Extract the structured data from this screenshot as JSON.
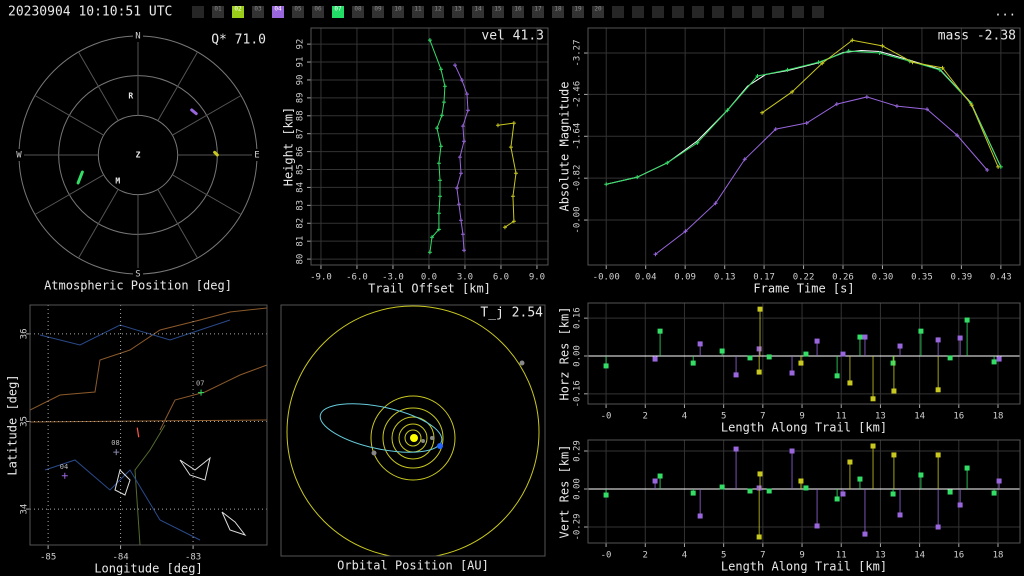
{
  "header": {
    "timestamp": "20230904 10:10:51 UTC",
    "menu": "...",
    "cameras": [
      {
        "label": "01"
      },
      {
        "label": "02",
        "color": "#9acd1a"
      },
      {
        "label": "03"
      },
      {
        "label": "04",
        "color": "#9966dd"
      },
      {
        "label": "05"
      },
      {
        "label": "06"
      },
      {
        "label": "07",
        "color": "#22dd66"
      },
      {
        "label": "08"
      },
      {
        "label": "09"
      },
      {
        "label": "10"
      },
      {
        "label": "11"
      },
      {
        "label": "12"
      },
      {
        "label": "13"
      },
      {
        "label": "14"
      },
      {
        "label": "15"
      },
      {
        "label": "16"
      },
      {
        "label": "17"
      },
      {
        "label": "18"
      },
      {
        "label": "19"
      },
      {
        "label": "20"
      }
    ]
  },
  "chart_data": [
    {
      "type": "polar",
      "title": "Atmospheric Position [deg]",
      "annotation": "Q* 71.0",
      "rlim": [
        0,
        90
      ],
      "rticks": [
        30,
        60,
        90
      ],
      "thetaticks": [
        0,
        30,
        60,
        90,
        120,
        150,
        180,
        210,
        240,
        270,
        300,
        330
      ],
      "directions": [
        {
          "label": "N",
          "az": 0
        },
        {
          "label": "E",
          "az": 90
        },
        {
          "label": "S",
          "az": 180
        },
        {
          "label": "W",
          "az": 270
        }
      ],
      "markers": [
        {
          "label": "Z",
          "az": 0,
          "zen": 0
        },
        {
          "label": "R",
          "az": 353,
          "zen": 45
        },
        {
          "label": "M",
          "az": 217.6,
          "zen": 25
        }
      ],
      "series": [
        {
          "color": "#33dd66",
          "az": [
            245,
            253
          ],
          "zen": [
            50,
            44
          ]
        },
        {
          "color": "#9966dd",
          "az": [
            50,
            54.6
          ],
          "zen": [
            53,
            54
          ]
        },
        {
          "color": "#c8c820",
          "az": [
            88,
            90
          ],
          "zen": [
            58,
            60
          ]
        }
      ]
    },
    {
      "type": "line",
      "annotation": "vel 41.3",
      "xlabel": "Trail Offset [km]",
      "ylabel": "Height [km]",
      "xlim": [
        -9.83,
        9.92
      ],
      "ylim": [
        79.67,
        92.9
      ],
      "xticks": [
        {
          "value": -9,
          "label": "-9.0"
        },
        {
          "value": -6,
          "label": "-6.0"
        },
        {
          "value": -3,
          "label": "-3.0"
        },
        {
          "value": 0,
          "label": "0.0"
        },
        {
          "value": 3,
          "label": "3.0"
        },
        {
          "value": 6,
          "label": "6.0"
        },
        {
          "value": 9,
          "label": "9.0"
        }
      ],
      "yticks": [
        80,
        81,
        82,
        83,
        84,
        85,
        86,
        87,
        88,
        89,
        90,
        91,
        92
      ],
      "grid": true,
      "series": [
        {
          "color": "#33dd66",
          "marker": "+",
          "x": [
            0.08,
            1.0,
            1.33,
            1.25,
            1.08,
            0.67,
            1.0,
            0.83,
            0.92,
            0.92,
            0.83,
            0.83,
            0.25,
            0.08
          ],
          "values": [
            92.22,
            90.6,
            89.65,
            88.76,
            88.03,
            87.31,
            86.3,
            85.35,
            84.4,
            83.51,
            82.56,
            81.66,
            81.22,
            80.38
          ]
        },
        {
          "color": "#9966dd",
          "marker": "+",
          "x": [
            2.17,
            2.75,
            3.17,
            3.25,
            2.83,
            2.92,
            2.58,
            2.67,
            2.33,
            2.5,
            2.67,
            2.83,
            2.92
          ],
          "values": [
            90.83,
            89.99,
            89.21,
            88.31,
            87.42,
            86.58,
            85.69,
            84.79,
            83.96,
            83.06,
            82.17,
            81.39,
            80.49
          ]
        },
        {
          "color": "#c8c820",
          "marker": "+",
          "x": [
            5.75,
            7.08,
            6.83,
            7.25,
            7.0,
            7.08,
            6.33
          ],
          "values": [
            87.47,
            87.59,
            86.25,
            84.79,
            83.51,
            82.11,
            81.78
          ]
        }
      ]
    },
    {
      "type": "line",
      "annotation": "mass -2.38",
      "xlabel": "Frame Time [s]",
      "ylabel": "Absolute Magnitude",
      "xlim": [
        -0.02,
        0.454
      ],
      "ylim": [
        0.88,
        -3.76
      ],
      "xticks": [
        {
          "value": 0,
          "label": "-0.00"
        },
        {
          "value": 0.0433,
          "label": "0.04"
        },
        {
          "value": 0.0866,
          "label": "0.09"
        },
        {
          "value": 0.13,
          "label": "0.13"
        },
        {
          "value": 0.1732,
          "label": "0.17"
        },
        {
          "value": 0.2165,
          "label": "0.22"
        },
        {
          "value": 0.2598,
          "label": "0.26"
        },
        {
          "value": 0.3031,
          "label": "0.30"
        },
        {
          "value": 0.3464,
          "label": "0.35"
        },
        {
          "value": 0.3897,
          "label": "0.39"
        },
        {
          "value": 0.433,
          "label": "0.43"
        }
      ],
      "yticks": [
        -3.27,
        -2.46,
        -1.64,
        -0.82,
        {
          "value": 0,
          "label": "-0.00"
        }
      ],
      "grid": true,
      "series": [
        {
          "color": "#ffffff",
          "x": [
            0,
            0.034,
            0.067,
            0.1,
            0.133,
            0.155,
            0.175,
            0.2,
            0.233,
            0.26,
            0.28,
            0.3,
            0.333,
            0.366,
            0.4,
            0.433
          ],
          "values": [
            -0.7,
            -0.84,
            -1.12,
            -1.55,
            -2.15,
            -2.62,
            -2.85,
            -2.93,
            -3.08,
            -3.28,
            -3.32,
            -3.3,
            -3.13,
            -2.95,
            -2.3,
            -1.04
          ]
        },
        {
          "color": "#33dd66",
          "marker": "+",
          "x": [
            0,
            0.034,
            0.067,
            0.1,
            0.133,
            0.166,
            0.199,
            0.233,
            0.266,
            0.3,
            0.333,
            0.366,
            0.4,
            0.433
          ],
          "values": [
            -0.7,
            -0.84,
            -1.12,
            -1.51,
            -2.15,
            -2.82,
            -2.94,
            -3.09,
            -3.31,
            -3.27,
            -3.11,
            -2.94,
            -2.29,
            -1.04
          ]
        },
        {
          "color": "#c8c820",
          "marker": "+",
          "x": [
            0.171,
            0.204,
            0.237,
            0.27,
            0.303,
            0.336,
            0.369,
            0.401,
            0.43
          ],
          "values": [
            -2.1,
            -2.51,
            -3.07,
            -3.52,
            -3.41,
            -3.09,
            -2.98,
            -2.25,
            -1.04
          ]
        },
        {
          "color": "#9966dd",
          "marker": "+",
          "x": [
            0.054,
            0.087,
            0.12,
            0.152,
            0.186,
            0.22,
            0.253,
            0.286,
            0.319,
            0.352,
            0.385,
            0.418
          ],
          "values": [
            0.67,
            0.22,
            -0.33,
            -1.19,
            -1.78,
            -1.9,
            -2.27,
            -2.41,
            -2.23,
            -2.17,
            -1.66,
            -0.98
          ]
        }
      ]
    },
    {
      "type": "map",
      "xlabel": "Longitude [deg]",
      "ylabel": "Latitude [deg]",
      "xlim": [
        -85.25,
        -81.98
      ],
      "ylim": [
        33.59,
        36.33
      ],
      "xticks": [
        -85,
        -84,
        -83
      ],
      "yticks": [
        34,
        35,
        36
      ],
      "grid": true,
      "stations": [
        {
          "label": "07",
          "lon": -82.89,
          "lat": 35.33,
          "color": "#33dd66"
        },
        {
          "label": "08",
          "lon": -84.06,
          "lat": 34.65,
          "color": "#8888aa"
        },
        {
          "label": "04",
          "lon": -84.77,
          "lat": 34.38,
          "color": "#9966dd"
        }
      ],
      "trail": {
        "color": "#ff5544",
        "lon": [
          -83.77,
          -83.75
        ],
        "lat": [
          34.93,
          34.82
        ]
      }
    },
    {
      "type": "orbit",
      "title": "Orbital Position [AU]",
      "annotation": "T_j 2.54"
    },
    {
      "type": "stem",
      "xlabel": "Length Along Trail [km]",
      "ylabel": "Horz Res [km]",
      "xlim": [
        -0.83,
        19.01
      ],
      "ylim": [
        -0.203,
        0.224
      ],
      "xticks": [
        {
          "value": 0,
          "label": "-0"
        },
        {
          "value": 1.8,
          "label": "2"
        },
        {
          "value": 3.6,
          "label": "4"
        },
        {
          "value": 5.4,
          "label": "5"
        },
        {
          "value": 7.2,
          "label": "7"
        },
        9,
        {
          "value": 10.8,
          "label": "11"
        },
        {
          "value": 12.6,
          "label": "13"
        },
        {
          "value": 14.4,
          "label": "14"
        },
        {
          "value": 16.2,
          "label": "16"
        },
        18
      ],
      "yticks": [
        0.16,
        {
          "value": 0,
          "label": "0.00"
        },
        -0.16
      ],
      "grid": true,
      "series": [
        {
          "color": "#33dd66",
          "x": [
            0,
            2.48,
            4,
            5.33,
            6.61,
            7.49,
            9.18,
            10.61,
            11.66,
            13.18,
            14.46,
            15.8,
            16.58,
            17.82
          ],
          "values": [
            -0.042,
            0.105,
            -0.03,
            0.021,
            -0.008,
            -0.004,
            0.008,
            -0.084,
            0.08,
            -0.03,
            0.105,
            -0.008,
            0.152,
            -0.025
          ]
        },
        {
          "color": "#9966dd",
          "x": [
            2.25,
            4.32,
            5.97,
            7.03,
            8.54,
            9.69,
            10.88,
            11.89,
            13.5,
            15.25,
            16.26,
            18.05
          ],
          "values": [
            -0.013,
            0.051,
            -0.08,
            0.03,
            -0.072,
            0.063,
            0.008,
            0.08,
            0.042,
            0.068,
            0.076,
            -0.013
          ]
        },
        {
          "color": "#c8c820",
          "x": [
            7.03,
            7.07,
            8.95,
            11.2,
            12.26,
            13.22,
            15.25
          ],
          "values": [
            -0.068,
            0.198,
            -0.03,
            -0.114,
            -0.181,
            -0.148,
            -0.143
          ]
        }
      ]
    },
    {
      "type": "stem",
      "xlabel": "Length Along Trail [km]",
      "ylabel": "Vert Res [km]",
      "xlim": [
        -0.83,
        19.01
      ],
      "ylim": [
        -0.412,
        0.374
      ],
      "xticks": [
        {
          "value": 0,
          "label": "-0"
        },
        {
          "value": 1.8,
          "label": "2"
        },
        {
          "value": 3.6,
          "label": "4"
        },
        {
          "value": 5.4,
          "label": "5"
        },
        {
          "value": 7.2,
          "label": "7"
        },
        9,
        {
          "value": 10.8,
          "label": "11"
        },
        {
          "value": 12.6,
          "label": "13"
        },
        {
          "value": 14.4,
          "label": "14"
        },
        {
          "value": 16.2,
          "label": "16"
        },
        18
      ],
      "yticks": [
        0.29,
        {
          "value": 0,
          "label": "0.00"
        },
        -0.29
      ],
      "grid": true,
      "series": [
        {
          "color": "#33dd66",
          "x": [
            0,
            2.48,
            4,
            5.33,
            6.61,
            7.49,
            9.18,
            10.61,
            11.66,
            13.18,
            14.46,
            15.8,
            16.58,
            17.82
          ],
          "values": [
            -0.046,
            0.099,
            -0.031,
            0.015,
            -0.015,
            -0.015,
            0.008,
            -0.076,
            0.076,
            -0.038,
            0.107,
            -0.023,
            0.16,
            -0.031
          ]
        },
        {
          "color": "#9966dd",
          "x": [
            2.25,
            4.32,
            5.97,
            7.03,
            8.54,
            9.69,
            10.88,
            11.89,
            13.5,
            15.25,
            16.26,
            18.05
          ],
          "values": [
            0.061,
            -0.206,
            0.305,
            0.008,
            0.29,
            -0.282,
            -0.038,
            -0.344,
            -0.198,
            -0.29,
            -0.122,
            0.061
          ]
        },
        {
          "color": "#c8c820",
          "x": [
            7.03,
            7.07,
            8.95,
            11.2,
            12.26,
            13.22,
            15.25
          ],
          "values": [
            -0.366,
            0.115,
            0.061,
            0.206,
            0.328,
            0.26,
            0.26
          ]
        }
      ]
    }
  ]
}
